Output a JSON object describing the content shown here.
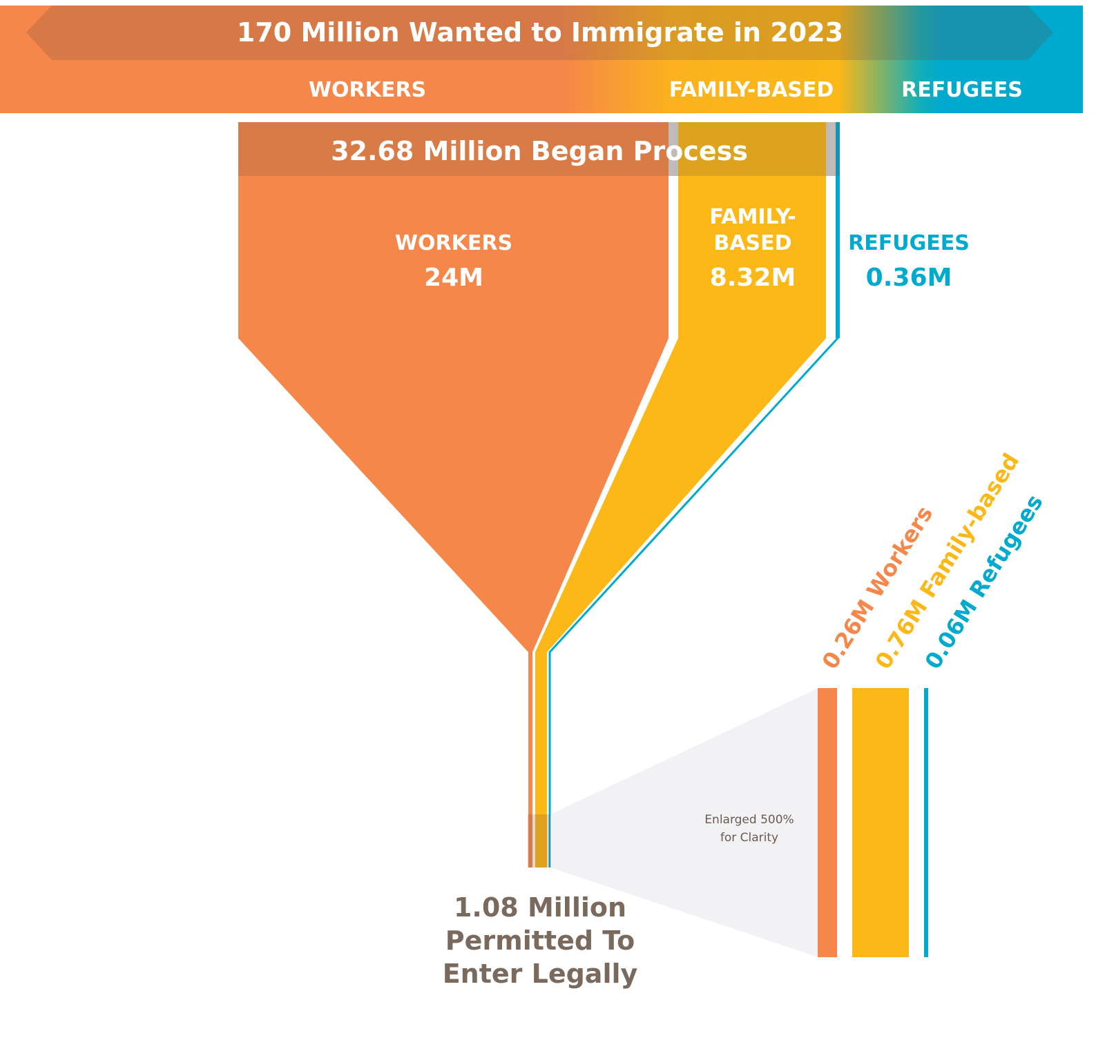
{
  "colors": {
    "workers": "#F5874A",
    "family": "#FBB817",
    "refugees": "#00A9CE",
    "text_brown": "#7A6A5E",
    "callout_bg": "#F2F2F4"
  },
  "banner": {
    "title": "170 Million Wanted to Immigrate in 2023",
    "categories": [
      "WORKERS",
      "FAMILY-BASED",
      "REFUGEES"
    ]
  },
  "funnel": {
    "header": "32.68 Million Began Process",
    "workers": {
      "label": "WORKERS",
      "value": "24M"
    },
    "family": {
      "label_line1": "FAMILY-",
      "label_line2": "BASED",
      "value": "8.32M"
    },
    "refugees": {
      "label": "REFUGEES",
      "value": "0.36M"
    }
  },
  "result": {
    "line1": "1.08 Million",
    "line2": "Permitted To",
    "line3": "Enter Legally"
  },
  "callout": {
    "note_line1": "Enlarged 500%",
    "note_line2": "for Clarity",
    "workers": "0.26M Workers",
    "family": "0.76M Family-based",
    "refugees": "0.06M Refugees"
  }
}
